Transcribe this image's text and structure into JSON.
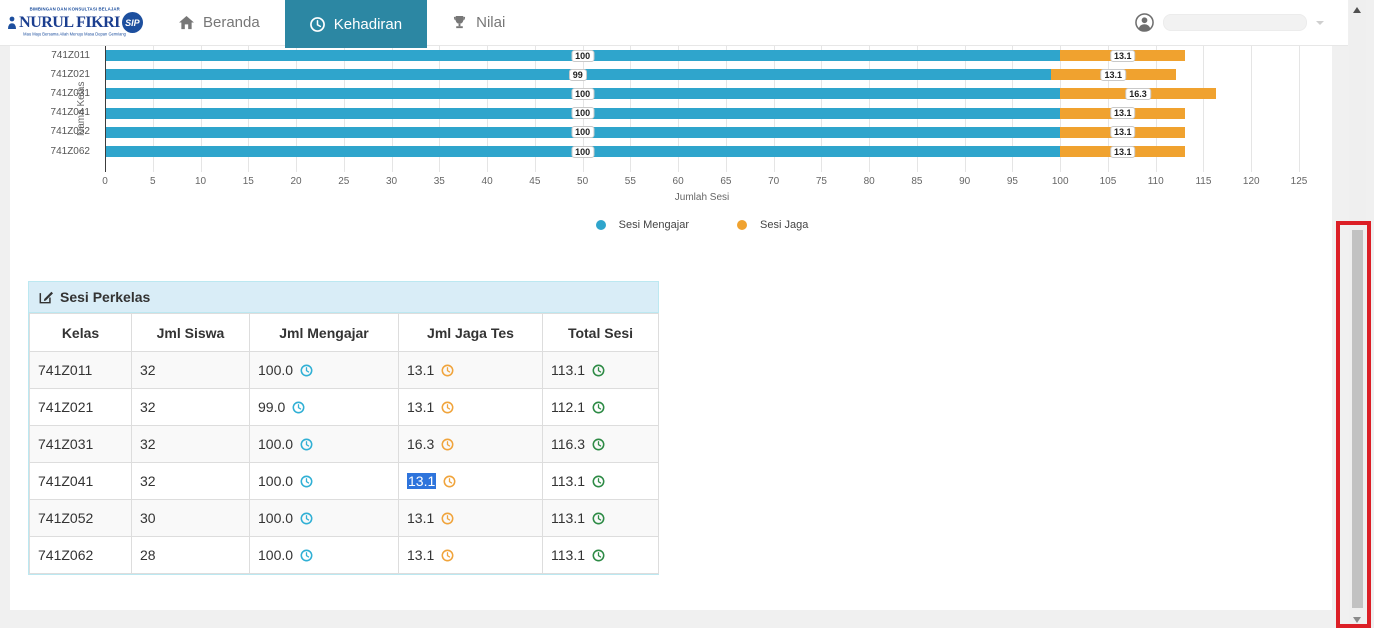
{
  "nav": {
    "brand": {
      "top": "BIMBINGAN DAN KONSULTASI BELAJAR",
      "name": "NURUL FIKRI",
      "badge": "SIP",
      "tagline": "Mau Maju Bersama Allah Menuju Masa Depan Gemilang"
    },
    "items": [
      {
        "label": "Beranda",
        "icon": "home-icon",
        "active": false
      },
      {
        "label": "Kehadiran",
        "icon": "clock-icon",
        "active": true
      },
      {
        "label": "Nilai",
        "icon": "trophy-icon",
        "active": false
      }
    ]
  },
  "chart_data": {
    "type": "bar",
    "orientation": "horizontal-stacked",
    "categories": [
      "741Z011",
      "741Z021",
      "741Z031",
      "741Z041",
      "741Z052",
      "741Z062"
    ],
    "series": [
      {
        "name": "Sesi Mengajar",
        "color": "#2fa5cc",
        "values": [
          100,
          99,
          100,
          100,
          100,
          100
        ],
        "labels": [
          "100",
          "99",
          "100",
          "100",
          "100",
          "100"
        ]
      },
      {
        "name": "Sesi Jaga",
        "color": "#f0a22f",
        "values": [
          13.1,
          13.1,
          16.3,
          13.1,
          13.1,
          13.1
        ],
        "labels": [
          "13.1",
          "13.1",
          "16.3",
          "13.1",
          "13.1",
          "13.1"
        ]
      }
    ],
    "xlabel": "Jumlah Sesi",
    "ylabel": "Nama Kelas",
    "xlim": [
      0,
      125
    ],
    "xticks": [
      0,
      5,
      10,
      15,
      20,
      25,
      30,
      35,
      40,
      45,
      50,
      55,
      60,
      65,
      70,
      75,
      80,
      85,
      90,
      95,
      100,
      105,
      110,
      115,
      120,
      125
    ],
    "grid": true,
    "legend_position": "bottom"
  },
  "table": {
    "title": "Sesi Perkelas",
    "headers": [
      "Kelas",
      "Jml Siswa",
      "Jml Mengajar",
      "Jml Jaga Tes",
      "Total Sesi"
    ],
    "rows": [
      {
        "kelas": "741Z011",
        "siswa": "32",
        "mengajar": "100.0",
        "jaga": "13.1",
        "total": "113.1",
        "jaga_selected": false
      },
      {
        "kelas": "741Z021",
        "siswa": "32",
        "mengajar": "99.0",
        "jaga": "13.1",
        "total": "112.1",
        "jaga_selected": false
      },
      {
        "kelas": "741Z031",
        "siswa": "32",
        "mengajar": "100.0",
        "jaga": "16.3",
        "total": "116.3",
        "jaga_selected": false
      },
      {
        "kelas": "741Z041",
        "siswa": "32",
        "mengajar": "100.0",
        "jaga": "13.1",
        "total": "113.1",
        "jaga_selected": true
      },
      {
        "kelas": "741Z052",
        "siswa": "30",
        "mengajar": "100.0",
        "jaga": "13.1",
        "total": "113.1",
        "jaga_selected": false
      },
      {
        "kelas": "741Z062",
        "siswa": "28",
        "mengajar": "100.0",
        "jaga": "13.1",
        "total": "113.1",
        "jaga_selected": false
      }
    ],
    "icon_colors": {
      "mengajar": "#31b0d5",
      "jaga": "#f0a43c",
      "total": "#2e8b46"
    }
  },
  "colors": {
    "page_bg": "#f0f0f0",
    "navbar_active_bg": "#2c87a3",
    "panel_heading_bg": "#d9edf7",
    "panel_border": "#bce8f1",
    "selection_bg": "#2e74dc",
    "annotation_red": "#dc1f26",
    "scrollbar_thumb": "#c2c2c2"
  }
}
